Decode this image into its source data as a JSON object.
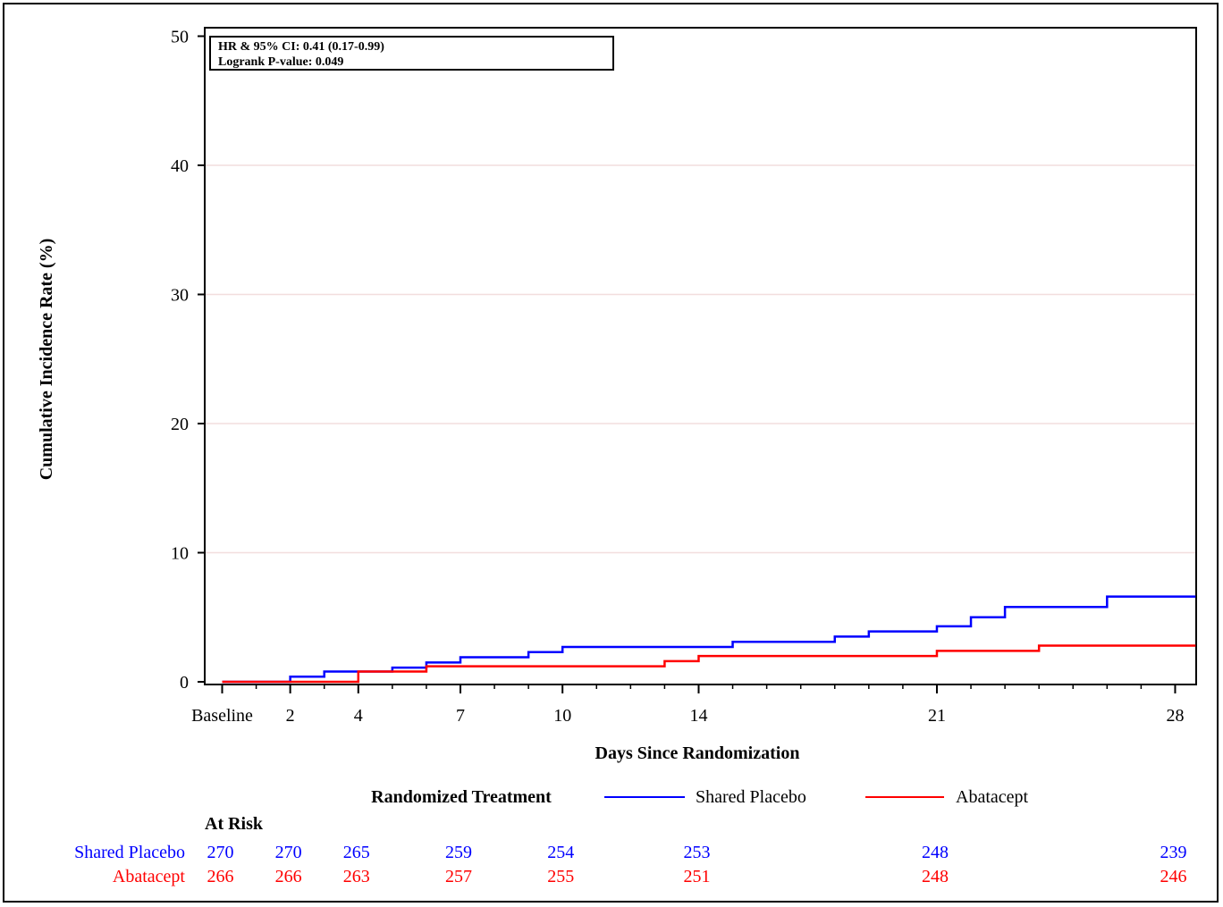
{
  "chart_data": {
    "type": "line",
    "title": "",
    "xlabel": "Days Since Randomization",
    "ylabel": "Cumulative Incidence Rate (%)",
    "xlim": [
      0,
      28.6
    ],
    "ylim": [
      0,
      50
    ],
    "x_ticks": [
      {
        "value": 0,
        "label": "Baseline"
      },
      {
        "value": 2,
        "label": "2"
      },
      {
        "value": 4,
        "label": "4"
      },
      {
        "value": 7,
        "label": "7"
      },
      {
        "value": 10,
        "label": "10"
      },
      {
        "value": 14,
        "label": "14"
      },
      {
        "value": 21,
        "label": "21"
      },
      {
        "value": 28,
        "label": "28"
      }
    ],
    "y_ticks": [
      0,
      10,
      20,
      30,
      40,
      50
    ],
    "grid": true,
    "step": true,
    "annotations": [
      "HR & 95% CI:  0.41 (0.17-0.99)",
      "Logrank P-value:  0.049"
    ],
    "legend": {
      "title": "Randomized Treatment",
      "placement": "bottom"
    },
    "series": [
      {
        "name": "Shared Placebo",
        "color": "#0000ff",
        "x": [
          0,
          2,
          3,
          5,
          6,
          7,
          9,
          10,
          15,
          18,
          19,
          21,
          22,
          23,
          26,
          28.6
        ],
        "values": [
          0,
          0.4,
          0.8,
          1.1,
          1.5,
          1.9,
          2.3,
          2.7,
          3.1,
          3.5,
          3.9,
          4.3,
          5.0,
          5.8,
          6.6,
          6.6
        ]
      },
      {
        "name": "Abatacept",
        "color": "#ff0000",
        "x": [
          0,
          4,
          6,
          13,
          14,
          21,
          24,
          28.6
        ],
        "values": [
          0,
          0.8,
          1.2,
          1.6,
          2.0,
          2.4,
          2.8,
          2.8
        ]
      }
    ],
    "at_risk": {
      "header": "At Risk",
      "days": [
        0,
        2,
        4,
        7,
        10,
        14,
        21,
        28
      ],
      "rows": [
        {
          "label": "Shared Placebo",
          "color": "#0000ff",
          "values": [
            "270",
            "270",
            "265",
            "259",
            "254",
            "253",
            "248",
            "239"
          ]
        },
        {
          "label": "Abatacept",
          "color": "#ff0000",
          "values": [
            "266",
            "266",
            "263",
            "257",
            "255",
            "251",
            "248",
            "246"
          ]
        }
      ]
    }
  }
}
